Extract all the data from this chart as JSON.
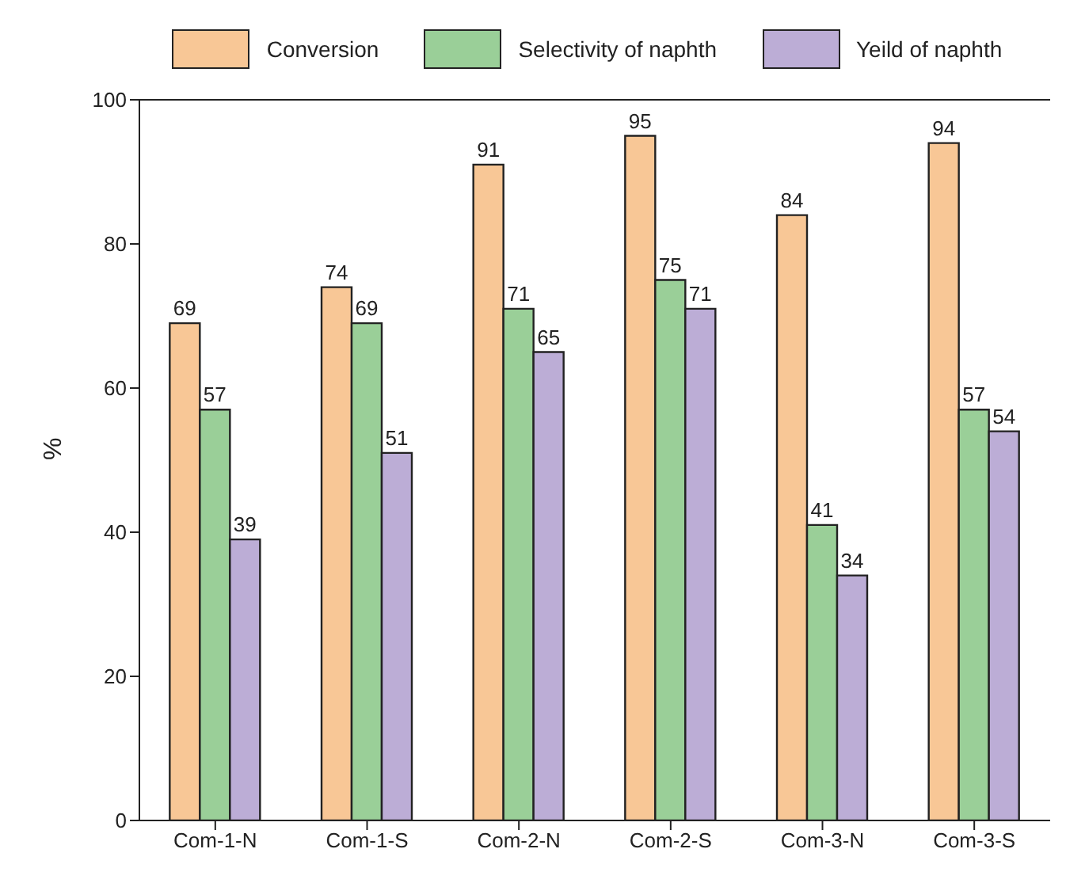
{
  "chart_data": {
    "type": "bar",
    "ylabel": "%",
    "categories": [
      "Com-1-N",
      "Com-1-S",
      "Com-2-N",
      "Com-2-S",
      "Com-3-N",
      "Com-3-S"
    ],
    "series": [
      {
        "name": "Conversion",
        "color": "#f8c796",
        "values": [
          69,
          74,
          91,
          95,
          84,
          94
        ]
      },
      {
        "name": "Selectivity of naphth",
        "color": "#9acf98",
        "values": [
          57,
          69,
          71,
          75,
          41,
          57
        ]
      },
      {
        "name": "Yeild of naphth",
        "color": "#bcadd6",
        "values": [
          39,
          51,
          65,
          71,
          34,
          54
        ]
      }
    ],
    "ylim": [
      0,
      100
    ],
    "yticks": [
      0,
      20,
      40,
      60,
      80,
      100
    ],
    "data_labels": true,
    "legend": "top",
    "grid": false
  }
}
